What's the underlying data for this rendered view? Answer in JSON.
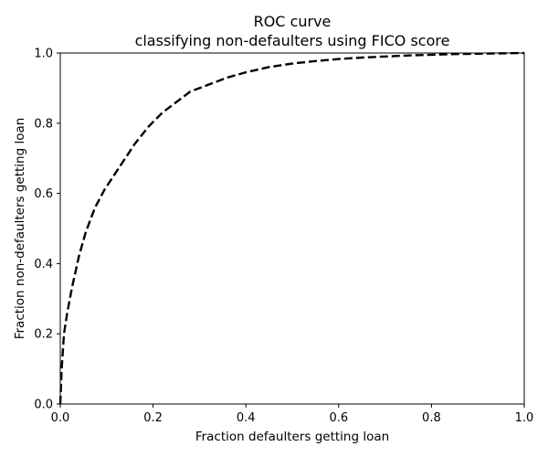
{
  "chart_data": {
    "type": "line",
    "title": "ROC curve",
    "subtitle": "classifying non-defaulters using FICO score",
    "xlabel": "Fraction defaulters getting loan",
    "ylabel": "Fraction non-defaulters getting loan",
    "xlim": [
      0,
      1
    ],
    "ylim": [
      0,
      1
    ],
    "xticks": [
      "0.0",
      "0.2",
      "0.4",
      "0.6",
      "0.8",
      "1.0"
    ],
    "yticks": [
      "0.0",
      "0.2",
      "0.4",
      "0.6",
      "0.8",
      "1.0"
    ],
    "grid": false,
    "series": [
      {
        "line_style": "dashed",
        "color": "#000000",
        "x": [
          0.0,
          0.003,
          0.008,
          0.015,
          0.025,
          0.04,
          0.055,
          0.075,
          0.095,
          0.11,
          0.135,
          0.16,
          0.19,
          0.22,
          0.25,
          0.28,
          0.32,
          0.36,
          0.4,
          0.45,
          0.5,
          0.55,
          0.6,
          0.65,
          0.7,
          0.75,
          0.8,
          0.85,
          0.9,
          0.95,
          1.0
        ],
        "y": [
          0.0,
          0.1,
          0.2,
          0.26,
          0.33,
          0.42,
          0.49,
          0.56,
          0.61,
          0.64,
          0.69,
          0.74,
          0.79,
          0.83,
          0.86,
          0.89,
          0.91,
          0.93,
          0.945,
          0.96,
          0.97,
          0.977,
          0.983,
          0.987,
          0.99,
          0.993,
          0.995,
          0.997,
          0.998,
          0.999,
          1.0
        ]
      }
    ]
  }
}
